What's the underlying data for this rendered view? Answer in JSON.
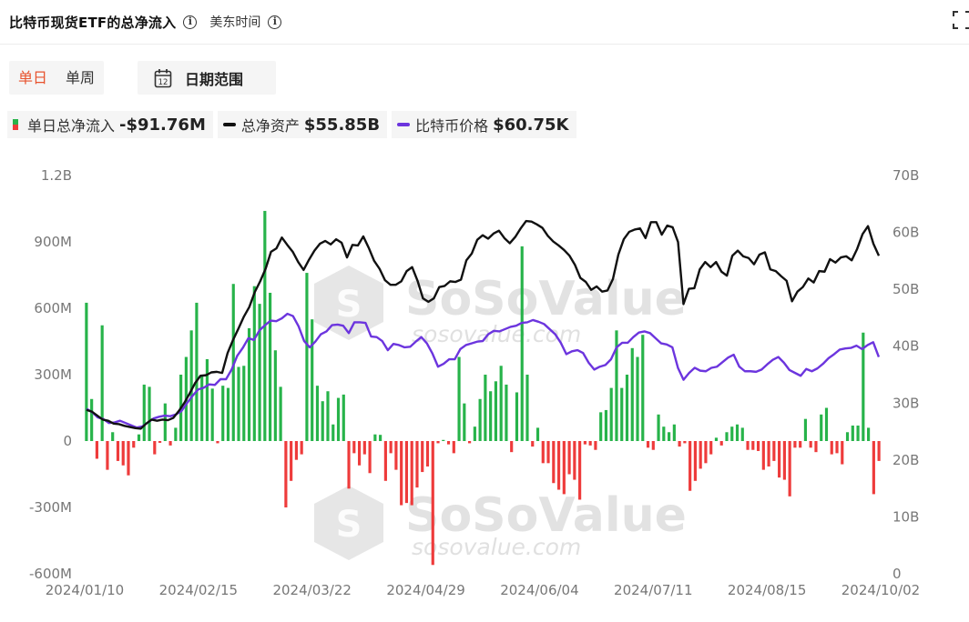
{
  "header": {
    "title": "比特币现货ETF的总净流入",
    "timezone": "美东时间"
  },
  "controls": {
    "period_options": [
      "单日",
      "单周"
    ],
    "active_period": "单日",
    "date_range_label": "日期范围",
    "calendar_day": "12"
  },
  "legend": [
    {
      "label": "单日总净流入",
      "value": "-$91.76M",
      "swatch": "bar"
    },
    {
      "label": "总净资产",
      "value": "$55.85B",
      "color": "#111111",
      "swatch": "line"
    },
    {
      "label": "比特币价格",
      "value": "$60.75K",
      "color": "#6c35de",
      "swatch": "line"
    }
  ],
  "watermark": {
    "brand": "SoSoValue",
    "url": "sosovalue.com"
  },
  "colors": {
    "inflow": "#27b34a",
    "outflow": "#ee3b3b",
    "net_assets": "#111111",
    "btc_price": "#6c35de"
  },
  "chart_data": {
    "type": "bar",
    "x_tick_labels": [
      "2024/01/10",
      "2024/02/15",
      "2024/03/22",
      "2024/04/29",
      "2024/06/04",
      "2024/07/11",
      "2024/08/15",
      "2024/10/02"
    ],
    "left_axis": {
      "ticks": [
        "1.2B",
        "900M",
        "600M",
        "300M",
        "0",
        "-300M",
        "-600M"
      ],
      "range": [
        -600,
        1200
      ],
      "unit": "M"
    },
    "right_axis": {
      "ticks": [
        "70B",
        "60B",
        "50B",
        "40B",
        "30B",
        "20B",
        "10B",
        "0"
      ],
      "range": [
        0,
        70
      ],
      "unit": "B"
    },
    "series": [
      {
        "name": "单日总净流入",
        "axis": "left",
        "values": [
          625,
          190,
          -80,
          523,
          -130,
          40,
          -90,
          -110,
          -155,
          -30,
          30,
          255,
          245,
          -60,
          -8,
          170,
          -20,
          60,
          300,
          380,
          500,
          625,
          300,
          370,
          237,
          -10,
          250,
          240,
          710,
          335,
          340,
          510,
          700,
          620,
          1040,
          670,
          410,
          245,
          -300,
          -180,
          -85,
          -60,
          760,
          550,
          250,
          180,
          225,
          75,
          195,
          210,
          -215,
          -55,
          -110,
          -60,
          -145,
          30,
          28,
          -180,
          -55,
          -130,
          -290,
          -280,
          -290,
          -210,
          -140,
          -115,
          -560,
          -10,
          5,
          -15,
          -55,
          380,
          170,
          -10,
          65,
          190,
          300,
          225,
          270,
          340,
          255,
          -50,
          220,
          880,
          300,
          -25,
          60,
          -100,
          -100,
          -190,
          -220,
          -240,
          -150,
          -175,
          -265,
          -15,
          -20,
          -40,
          130,
          140,
          240,
          500,
          240,
          300,
          420,
          380,
          480,
          -30,
          -40,
          120,
          65,
          40,
          75,
          -25,
          -10,
          -225,
          -180,
          -125,
          -100,
          -60,
          15,
          -20,
          40,
          65,
          75,
          60,
          -40,
          -40,
          -45,
          -130,
          -115,
          -90,
          -165,
          -175,
          -250,
          -30,
          -30,
          100,
          -30,
          -50,
          120,
          150,
          -60,
          -55,
          -105,
          40,
          70,
          70,
          490,
          60,
          -240,
          -90
        ]
      },
      {
        "name": "总净资产",
        "axis": "right",
        "values": [
          28.8,
          28.5,
          27.8,
          27.1,
          26.9,
          26.4,
          26.3,
          26.0,
          25.8,
          25.6,
          25.5,
          26.4,
          27.1,
          26.9,
          27.1,
          27.0,
          27.4,
          28.6,
          30.0,
          31.7,
          33.5,
          34.8,
          34.9,
          35.4,
          35.5,
          35.3,
          38.8,
          41.1,
          43.1,
          45.2,
          46.9,
          49.5,
          51.4,
          53.6,
          56.6,
          57.2,
          59.1,
          57.8,
          56.6,
          54.8,
          53.4,
          55.2,
          56.8,
          58.0,
          58.5,
          57.9,
          58.8,
          58.2,
          55.6,
          57.8,
          57.7,
          59.3,
          57.3,
          55.0,
          53.6,
          51.6,
          50.8,
          50.8,
          51.4,
          53.2,
          53.9,
          51.5,
          48.4,
          47.8,
          48.4,
          50.4,
          50.6,
          51.4,
          51.3,
          51.7,
          55.1,
          56.3,
          58.7,
          59.5,
          58.9,
          59.8,
          60.3,
          59.0,
          58.1,
          59.2,
          60.7,
          62.0,
          61.9,
          61.4,
          60.8,
          59.4,
          58.4,
          57.7,
          56.9,
          55.9,
          54.3,
          52.0,
          51.3,
          49.9,
          50.5,
          49.6,
          49.8,
          51.8,
          56.1,
          58.8,
          60.1,
          60.5,
          60.7,
          59.0,
          61.8,
          61.8,
          59.6,
          61.2,
          60.9,
          58.3,
          47.4,
          50.1,
          50.2,
          53.5,
          54.8,
          53.9,
          54.8,
          53.1,
          52.4,
          55.9,
          56.8,
          55.8,
          55.5,
          54.4,
          56.1,
          56.5,
          53.5,
          53.2,
          52.3,
          51.5,
          47.9,
          49.6,
          50.4,
          51.9,
          51.2,
          53.2,
          53.1,
          55.3,
          54.7,
          55.6,
          55.8,
          55.1,
          57.1,
          59.7,
          61.1,
          58.0,
          55.9
        ]
      },
      {
        "name": "比特币价格",
        "axis": "right",
        "values": [
          29.0,
          28.4,
          27.5,
          27.2,
          26.5,
          26.6,
          26.9,
          26.5,
          26.1,
          25.7,
          25.9,
          26.6,
          27.3,
          27.6,
          27.8,
          27.7,
          28.0,
          28.6,
          30.0,
          31.3,
          32.4,
          32.7,
          33.3,
          33.2,
          34.2,
          34.2,
          35.9,
          38.3,
          39.7,
          41.4,
          41.1,
          42.8,
          43.7,
          44.5,
          44.4,
          44.9,
          45.7,
          45.3,
          43.5,
          40.9,
          39.8,
          40.8,
          42.1,
          42.6,
          43.7,
          43.8,
          43.6,
          42.3,
          44.2,
          44.2,
          44.1,
          41.7,
          41.6,
          40.9,
          39.3,
          40.4,
          40.2,
          39.8,
          39.9,
          40.8,
          41.6,
          40.5,
          38.7,
          36.4,
          36.9,
          37.7,
          37.7,
          39.5,
          40.2,
          40.5,
          40.8,
          40.9,
          42.1,
          42.7,
          42.6,
          43.0,
          43.4,
          43.6,
          44.1,
          44.2,
          44.6,
          44.3,
          43.9,
          43.0,
          42.1,
          40.6,
          38.6,
          39.1,
          39.3,
          38.8,
          37.1,
          35.9,
          36.4,
          36.7,
          37.7,
          39.8,
          40.6,
          40.6,
          41.6,
          42.4,
          42.6,
          42.3,
          41.4,
          40.5,
          40.3,
          39.8,
          36.2,
          34.1,
          35.3,
          36.2,
          35.7,
          35.6,
          36.2,
          36.4,
          37.2,
          38.0,
          38.5,
          36.4,
          35.6,
          35.6,
          35.5,
          35.9,
          36.8,
          37.6,
          38.1,
          37.1,
          35.8,
          35.3,
          34.8,
          36.0,
          35.6,
          36.1,
          36.9,
          37.9,
          38.6,
          39.4,
          39.6,
          39.7,
          40.1,
          39.5,
          40.2,
          40.7,
          38.1
        ]
      }
    ],
    "grid": false,
    "legend_position": "top-left"
  }
}
